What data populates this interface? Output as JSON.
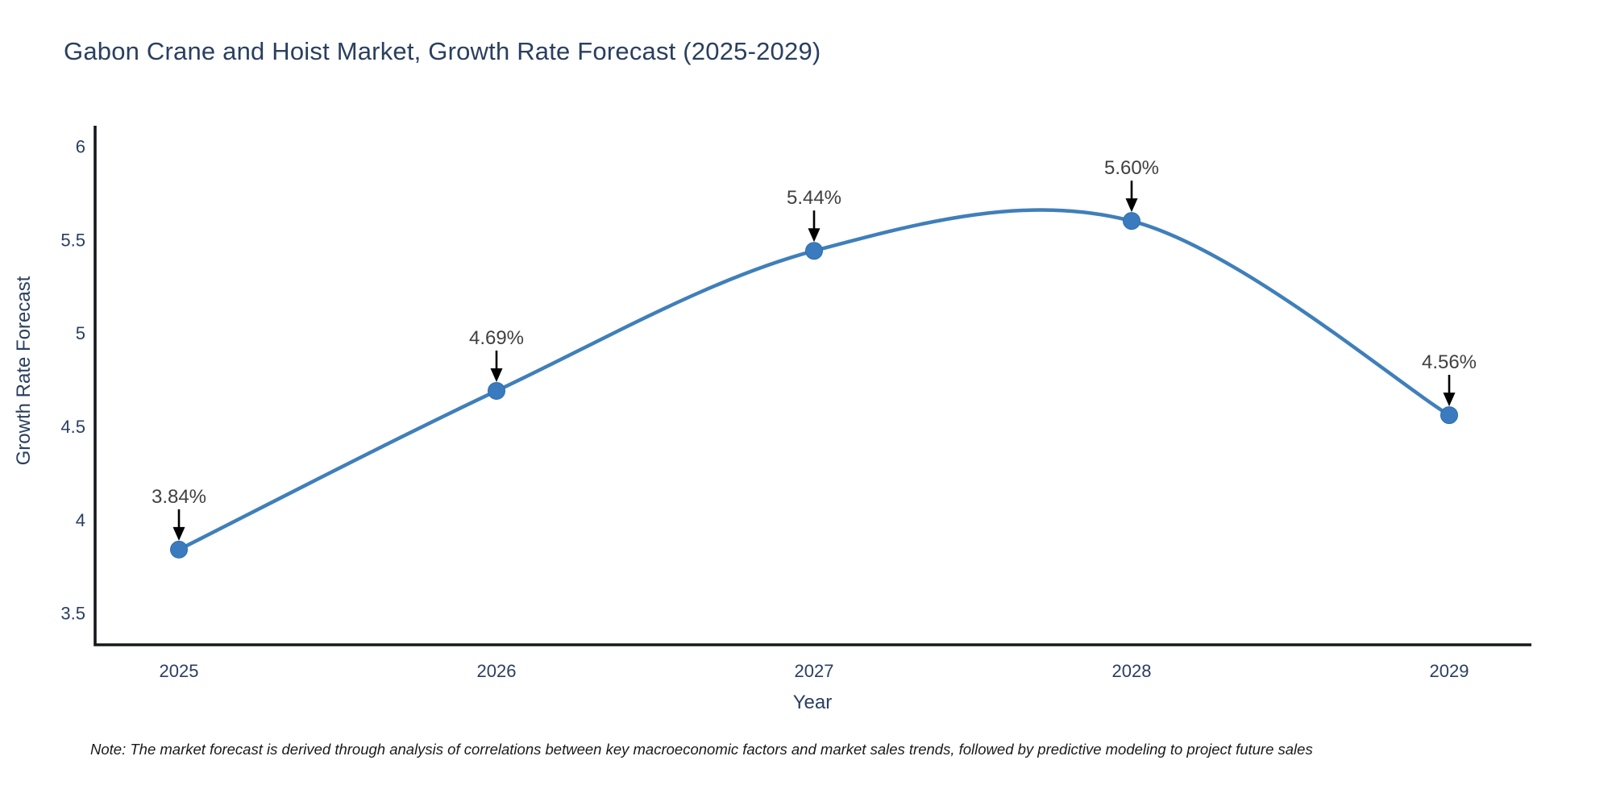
{
  "note": "Note: The market forecast is derived through analysis of correlations between key macroeconomic factors and market sales trends, followed by predictive modeling to project future sales",
  "chart_data": {
    "type": "line",
    "line_shape": "spline",
    "title": "Gabon Crane and Hoist Market, Growth Rate Forecast (2025-2029)",
    "xlabel": "Year",
    "ylabel": "Growth Rate Forecast",
    "x": [
      2025,
      2026,
      2027,
      2028,
      2029
    ],
    "values": [
      3.84,
      4.69,
      5.44,
      5.6,
      4.56
    ],
    "point_labels": [
      "3.84%",
      "4.69%",
      "5.44%",
      "5.60%",
      "4.56%"
    ],
    "xticklabels": [
      "2025",
      "2026",
      "2027",
      "2028",
      "2029"
    ],
    "yticks": [
      3.5,
      4,
      4.5,
      5,
      5.5,
      6
    ],
    "ytick_labels": [
      "3.5",
      "4",
      "4.5",
      "5",
      "5.5",
      "6"
    ],
    "ylim": [
      3.33,
      6.11
    ],
    "grid": false,
    "legend": "none",
    "colors": {
      "line": "#3f7fba",
      "marker_fill": "#3a7bbf",
      "marker_edge": "#2f6da8",
      "axis_line": "#16181d",
      "tick_text": "#2a3f5f",
      "annotation_text": "#404040",
      "annotation_arrow": "#000000",
      "title_text": "#2a3f5f",
      "background": "#ffffff"
    }
  }
}
